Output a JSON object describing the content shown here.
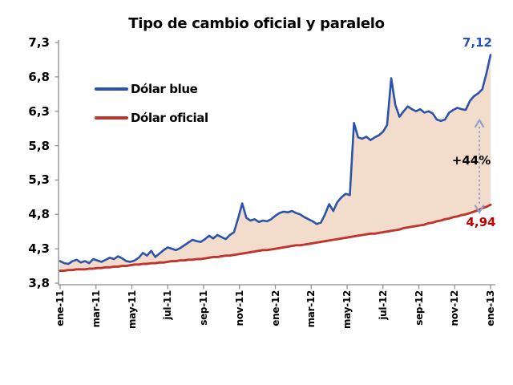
{
  "title": "Tipo de cambio oficial y paralelo",
  "chart_data": {
    "type": "line",
    "title": "Tipo de cambio oficial y paralelo",
    "x_description": "weekly samples from ene-11 to ene-13",
    "x_ticklabels": [
      "ene-11",
      "mar-11",
      "may-11",
      "jul-11",
      "sep-11",
      "nov-11",
      "ene-12",
      "mar-12",
      "may-12",
      "jul-12",
      "sep-12",
      "nov-12",
      "ene-13"
    ],
    "ylim": [
      3.8,
      7.3
    ],
    "yticks": [
      3.8,
      4.3,
      4.8,
      5.3,
      5.8,
      6.3,
      6.8,
      7.3
    ],
    "ytick_labels": [
      "3,8",
      "4,3",
      "4,8",
      "5,3",
      "5,8",
      "6,3",
      "6,8",
      "7,3"
    ],
    "grid": false,
    "legend_position": "upper-left-inside",
    "fill_between": {
      "between": "series",
      "color": "#f2dccb"
    },
    "axis_color": "#8c8c8c",
    "series": [
      {
        "name": "Dólar blue",
        "color": "#2b52ad",
        "final_value": 7.12,
        "values": [
          4.12,
          4.09,
          4.08,
          4.12,
          4.14,
          4.1,
          4.12,
          4.09,
          4.15,
          4.13,
          4.11,
          4.14,
          4.17,
          4.15,
          4.19,
          4.16,
          4.12,
          4.11,
          4.13,
          4.17,
          4.24,
          4.2,
          4.27,
          4.18,
          4.23,
          4.28,
          4.32,
          4.3,
          4.28,
          4.31,
          4.35,
          4.39,
          4.43,
          4.41,
          4.4,
          4.44,
          4.49,
          4.45,
          4.5,
          4.47,
          4.44,
          4.5,
          4.54,
          4.74,
          4.96,
          4.75,
          4.71,
          4.73,
          4.69,
          4.71,
          4.7,
          4.73,
          4.78,
          4.82,
          4.84,
          4.83,
          4.85,
          4.82,
          4.8,
          4.76,
          4.73,
          4.7,
          4.66,
          4.68,
          4.8,
          4.95,
          4.85,
          4.98,
          5.05,
          5.1,
          5.08,
          6.13,
          5.92,
          5.9,
          5.93,
          5.88,
          5.92,
          5.95,
          6.0,
          6.1,
          6.78,
          6.39,
          6.22,
          6.3,
          6.37,
          6.33,
          6.3,
          6.33,
          6.28,
          6.3,
          6.27,
          6.18,
          6.16,
          6.18,
          6.28,
          6.32,
          6.35,
          6.33,
          6.32,
          6.45,
          6.52,
          6.56,
          6.62,
          6.85,
          7.12
        ]
      },
      {
        "name": "Dólar oficial",
        "color": "#c0342e",
        "final_value": 4.94,
        "values": [
          3.98,
          3.98,
          3.99,
          3.99,
          4.0,
          4.0,
          4.0,
          4.01,
          4.01,
          4.02,
          4.02,
          4.03,
          4.03,
          4.04,
          4.04,
          4.05,
          4.05,
          4.06,
          4.07,
          4.07,
          4.08,
          4.08,
          4.09,
          4.09,
          4.1,
          4.1,
          4.11,
          4.12,
          4.12,
          4.13,
          4.13,
          4.14,
          4.14,
          4.15,
          4.15,
          4.16,
          4.17,
          4.18,
          4.18,
          4.19,
          4.2,
          4.2,
          4.21,
          4.22,
          4.23,
          4.24,
          4.25,
          4.26,
          4.27,
          4.28,
          4.28,
          4.29,
          4.3,
          4.31,
          4.32,
          4.33,
          4.34,
          4.35,
          4.35,
          4.36,
          4.37,
          4.38,
          4.39,
          4.4,
          4.41,
          4.42,
          4.43,
          4.44,
          4.45,
          4.46,
          4.47,
          4.48,
          4.49,
          4.5,
          4.51,
          4.52,
          4.52,
          4.53,
          4.54,
          4.55,
          4.56,
          4.57,
          4.58,
          4.6,
          4.61,
          4.62,
          4.63,
          4.64,
          4.65,
          4.67,
          4.68,
          4.7,
          4.71,
          4.73,
          4.74,
          4.76,
          4.77,
          4.79,
          4.8,
          4.82,
          4.84,
          4.86,
          4.89,
          4.91,
          4.94
        ]
      }
    ],
    "annotations": [
      {
        "text": "7,12",
        "color": "#2453b8",
        "meaning": "Dólar blue value at ene-13"
      },
      {
        "text": "+44%",
        "color": "#000000",
        "meaning": "gap between blue and official rate at ene-13"
      },
      {
        "text": "4,94",
        "color": "#c00000",
        "meaning": "Dólar oficial value at ene-13"
      }
    ],
    "arrow": {
      "week": 101.3,
      "top_value": 6.17,
      "bottom_value": 4.83,
      "color": "#8fa0c8",
      "style": "dashed-double-headed-vertical"
    }
  }
}
